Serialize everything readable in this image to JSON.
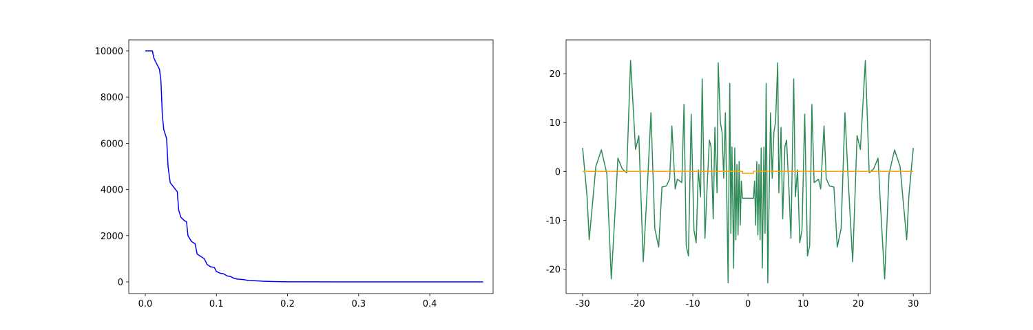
{
  "chart_data": [
    {
      "type": "line",
      "xlim": [
        -0.0232,
        0.489
      ],
      "ylim": [
        -506,
        10476
      ],
      "xticks": [
        {
          "value": 0,
          "label": "0.0"
        },
        0.1,
        0.2,
        0.3,
        0.4
      ],
      "yticks": [
        0,
        2000,
        4000,
        6000,
        8000,
        10000
      ],
      "series": [
        {
          "color": "#0000ff",
          "x": [
            0,
            0.01,
            0.012,
            0.015,
            0.02,
            0.022,
            0.024,
            0.026,
            0.03,
            0.032,
            0.035,
            0.04,
            0.045,
            0.047,
            0.05,
            0.055,
            0.058,
            0.06,
            0.065,
            0.07,
            0.073,
            0.078,
            0.083,
            0.087,
            0.092,
            0.097,
            0.1,
            0.105,
            0.11,
            0.115,
            0.12,
            0.125,
            0.13,
            0.138,
            0.145,
            0.155,
            0.165,
            0.18,
            0.2,
            0.3,
            0.475
          ],
          "values": [
            10000,
            10000,
            9700,
            9500,
            9200,
            8700,
            7200,
            6600,
            6200,
            5000,
            4300,
            4100,
            3900,
            3100,
            2800,
            2650,
            2600,
            2000,
            1750,
            1650,
            1200,
            1100,
            1000,
            750,
            650,
            630,
            450,
            380,
            350,
            260,
            230,
            150,
            120,
            100,
            60,
            50,
            30,
            15,
            5,
            0,
            0
          ]
        }
      ]
    },
    {
      "type": "line",
      "xlim": [
        -33,
        33.1
      ],
      "ylim": [
        -25,
        26.9
      ],
      "xticks": [
        -30,
        -20,
        -10,
        0,
        10,
        20,
        30
      ],
      "yticks": [
        -20,
        -10,
        0,
        10,
        20
      ],
      "series": [
        {
          "color": "#2e8b57",
          "x": [
            -30,
            -29.2,
            -28.8,
            -27.6,
            -26.6,
            -25.6,
            -24.8,
            -24,
            -23.6,
            -22.8,
            -22,
            -21.3,
            -20.4,
            -19.8,
            -19,
            -18.2,
            -17.6,
            -16.9,
            -16.2,
            -15.6,
            -14.8,
            -14.2,
            -13.8,
            -13.2,
            -12.8,
            -12,
            -11.6,
            -11.2,
            -10.8,
            -10.3,
            -9.8,
            -9.4,
            -9,
            -8.6,
            -8.3,
            -7.8,
            -7.4,
            -7,
            -6.7,
            -6.3,
            -6,
            -5.6,
            -5.4,
            -5,
            -4.7,
            -4.4,
            -4.1,
            -3.8,
            -3.6,
            -3.3,
            -3.1,
            -2.9,
            -2.6,
            -2.4,
            -2.2,
            -2,
            -1.8,
            -1.6,
            -1.4,
            -1.2,
            -1,
            1,
            1.2,
            1.4,
            1.6,
            1.8,
            2,
            2.2,
            2.4,
            2.6,
            2.9,
            3.1,
            3.3,
            3.6,
            3.8,
            4.1,
            4.4,
            4.7,
            5,
            5.4,
            5.6,
            6,
            6.3,
            6.7,
            7,
            7.4,
            7.8,
            8.3,
            8.6,
            9,
            9.4,
            9.8,
            10.3,
            10.8,
            11.2,
            11.6,
            12,
            12.8,
            13.2,
            13.8,
            14.2,
            14.8,
            15.6,
            16.2,
            16.9,
            17.6,
            18.2,
            19,
            19.8,
            20.4,
            21.3,
            22,
            22.8,
            23.6,
            24,
            24.8,
            25.6,
            26.6,
            27.6,
            28.8,
            29.2,
            30
          ],
          "values": [
            4.8,
            -5,
            -14,
            1,
            4.4,
            -0.5,
            -22,
            -6,
            2.7,
            0.5,
            -0.3,
            22.7,
            4.5,
            7.3,
            -18.5,
            -2,
            12,
            -11.7,
            -15.5,
            -3.2,
            -3,
            -1.5,
            9.3,
            -3.6,
            -1.6,
            -2.3,
            13.7,
            -15.2,
            -17.3,
            11.7,
            -12,
            -14.6,
            0.3,
            -5.2,
            18.9,
            -13.7,
            -2.8,
            6.4,
            5,
            -9.7,
            9,
            -4.4,
            22.2,
            10,
            8,
            -1.4,
            12,
            -8.2,
            -22.8,
            18,
            -12.7,
            5,
            -19.8,
            4.8,
            -14,
            1.4,
            -13,
            2,
            -11,
            -2,
            -5.5,
            -5.5,
            -2,
            -11,
            2,
            -13,
            1.4,
            -14,
            4.8,
            -19.8,
            5,
            -12.7,
            18,
            -22.8,
            -8.2,
            12,
            -1.4,
            8,
            10,
            22.2,
            -4.4,
            9,
            -9.7,
            5,
            6.4,
            -2.8,
            -13.7,
            18.9,
            -5.2,
            0.3,
            -14.6,
            -12,
            11.7,
            -17.3,
            -15.2,
            13.7,
            -2.3,
            -1.6,
            -3.6,
            9.3,
            -1.5,
            -3,
            -3.2,
            -15.5,
            -11.7,
            12,
            -2,
            -18.5,
            7.3,
            4.5,
            22.7,
            -0.3,
            0.5,
            2.7,
            -6,
            -22,
            -0.5,
            4.4,
            1,
            -14,
            -5,
            4.8
          ]
        },
        {
          "color": "#ffa500",
          "x": [
            -30,
            -1,
            -1,
            1,
            1,
            30
          ],
          "values": [
            0,
            0,
            -0.4,
            -0.4,
            0,
            0
          ]
        }
      ]
    }
  ]
}
